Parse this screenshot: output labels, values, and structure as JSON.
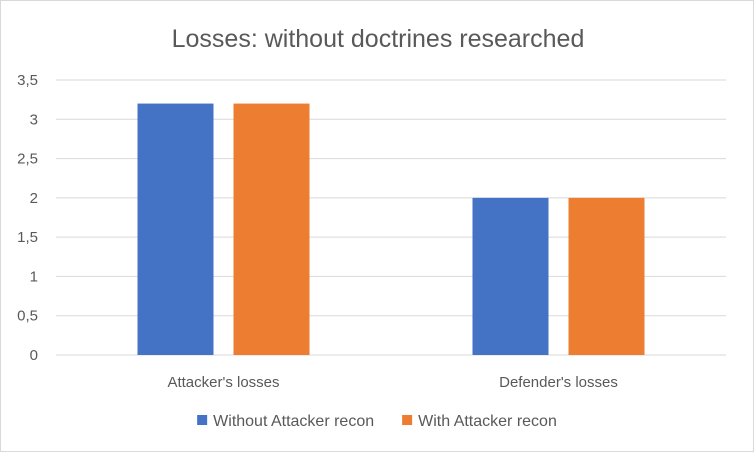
{
  "chart_data": {
    "type": "bar",
    "title": "Losses: without doctrines researched",
    "categories": [
      "Attacker's losses",
      "Defender's losses"
    ],
    "series": [
      {
        "name": "Without Attacker recon",
        "values": [
          3.2,
          2
        ],
        "color": "#4472C4"
      },
      {
        "name": "With Attacker recon",
        "values": [
          3.2,
          2
        ],
        "color": "#ED7D31"
      }
    ],
    "ylim": [
      0,
      3.5
    ],
    "yticks": [
      "0",
      "0,5",
      "1",
      "1,5",
      "2",
      "2,5",
      "3",
      "3,5"
    ],
    "grid": true,
    "legend_position": "bottom",
    "gridline_color": "#d9d9d9",
    "text_color": "#595959"
  }
}
